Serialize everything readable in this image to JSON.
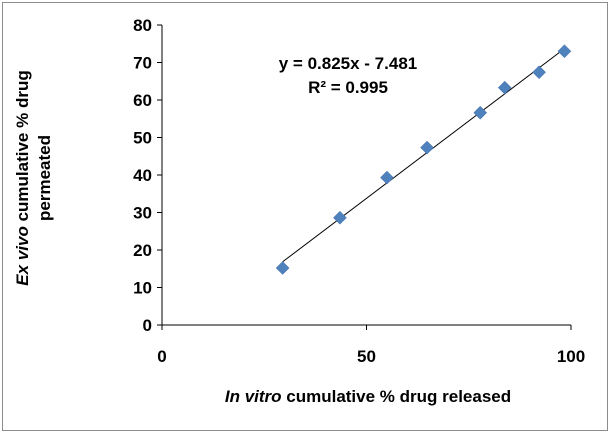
{
  "chart_data": {
    "type": "scatter",
    "x_label_italic": "In vitro",
    "x_label_rest": " cumulative  %  drug released",
    "y_label_italic": "Ex vivo",
    "y_label_rest_line1": " cumulative  %  drug",
    "y_label_line2": "permeated",
    "xlim": [
      0,
      100
    ],
    "ylim": [
      0,
      80
    ],
    "x_ticks": [
      "0",
      "50",
      "100"
    ],
    "y_ticks": [
      "0",
      "10",
      "20",
      "30",
      "40",
      "50",
      "60",
      "70",
      "80"
    ],
    "points": [
      {
        "x": 29.5,
        "y": 15.2
      },
      {
        "x": 43.5,
        "y": 28.6
      },
      {
        "x": 55.0,
        "y": 39.3
      },
      {
        "x": 64.8,
        "y": 47.3
      },
      {
        "x": 77.8,
        "y": 56.6
      },
      {
        "x": 83.8,
        "y": 63.3
      },
      {
        "x": 92.2,
        "y": 67.4
      },
      {
        "x": 98.4,
        "y": 73.0
      }
    ],
    "trendline": {
      "slope": 0.825,
      "intercept": -7.481,
      "x_start": 29.5,
      "x_end": 98.4
    },
    "equation_text": "y = 0.825x - 7.481",
    "r2_text": "R² = 0.995",
    "marker_color": "#4f81bd",
    "line_color": "#000000",
    "grid": false
  }
}
